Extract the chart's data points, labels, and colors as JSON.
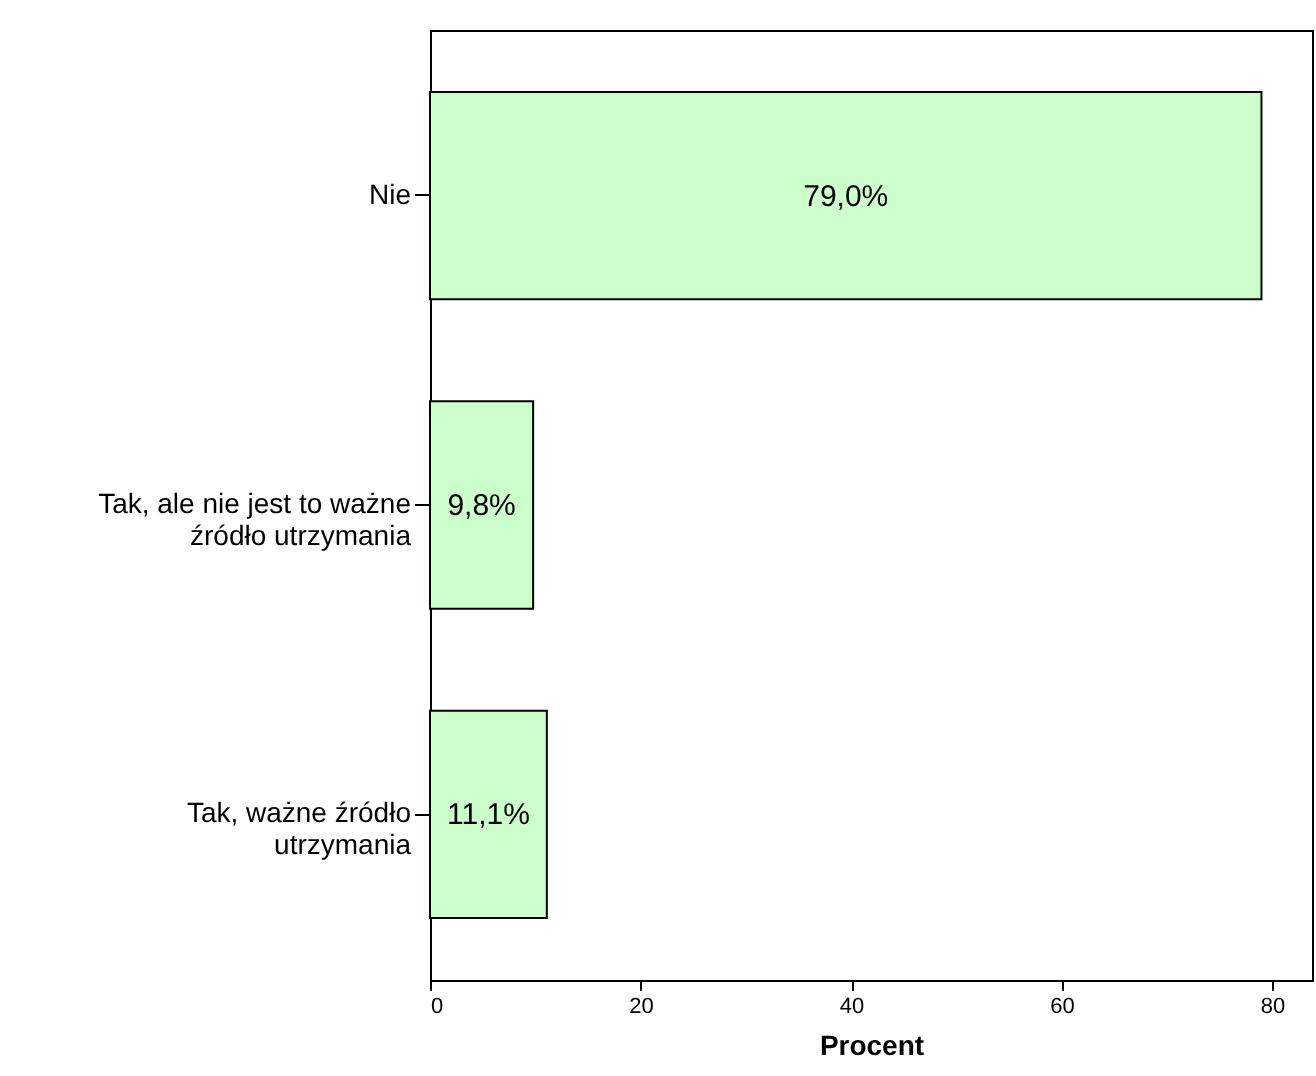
{
  "chart_data": {
    "type": "bar",
    "orientation": "horizontal",
    "xlabel": "Procent",
    "categories": [
      "Nie",
      "Tak, ale nie jest to ważne źródło utrzymania",
      "Tak, ważne źródło utrzymania"
    ],
    "values": [
      79.0,
      9.8,
      11.1
    ],
    "value_labels": [
      "79,0%",
      "9,8%",
      "11,1%"
    ],
    "color": "#ccffcc",
    "xlim": [
      0,
      83.8
    ],
    "xticks": [
      0,
      20,
      40,
      60,
      80
    ],
    "grid": false
  }
}
